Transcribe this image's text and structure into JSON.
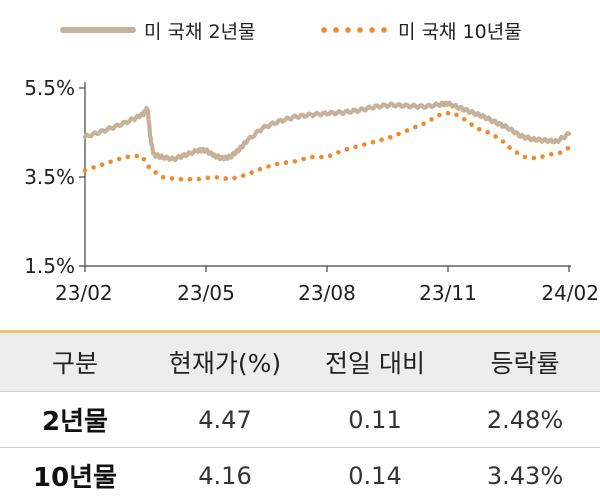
{
  "legend": {
    "series_2y": "미 국채 2년물",
    "series_10y": "미 국채 10년물"
  },
  "colors": {
    "series_2y": "#c7b299",
    "series_10y": "#ef8a2e",
    "axis": "#444444"
  },
  "chart_data": {
    "type": "line",
    "y_ticks": [
      "5.5%",
      "3.5%",
      "1.5%"
    ],
    "x_ticks": [
      "23/02",
      "23/05",
      "23/08",
      "23/11",
      "24/02"
    ],
    "ylim": [
      1.5,
      5.5
    ],
    "xlim": [
      0,
      12
    ],
    "grid": false,
    "legend_position": "top",
    "series": [
      {
        "name": "미 국채 2년물",
        "style": "solid",
        "points": [
          [
            0,
            4.4
          ],
          [
            0.4,
            4.52
          ],
          [
            0.8,
            4.65
          ],
          [
            1.2,
            4.8
          ],
          [
            1.45,
            4.92
          ],
          [
            1.55,
            5.05
          ],
          [
            1.62,
            4.4
          ],
          [
            1.7,
            4.0
          ],
          [
            1.9,
            3.95
          ],
          [
            2.2,
            3.9
          ],
          [
            2.5,
            4.0
          ],
          [
            2.8,
            4.1
          ],
          [
            3.0,
            4.1
          ],
          [
            3.2,
            3.98
          ],
          [
            3.4,
            3.92
          ],
          [
            3.6,
            3.95
          ],
          [
            3.8,
            4.1
          ],
          [
            4.0,
            4.3
          ],
          [
            4.4,
            4.6
          ],
          [
            4.8,
            4.75
          ],
          [
            5.2,
            4.85
          ],
          [
            5.6,
            4.9
          ],
          [
            6.0,
            4.93
          ],
          [
            6.4,
            4.95
          ],
          [
            6.8,
            5.0
          ],
          [
            7.2,
            5.08
          ],
          [
            7.6,
            5.12
          ],
          [
            8.0,
            5.1
          ],
          [
            8.4,
            5.08
          ],
          [
            8.8,
            5.13
          ],
          [
            9.0,
            5.15
          ],
          [
            9.3,
            5.05
          ],
          [
            9.6,
            4.95
          ],
          [
            9.9,
            4.85
          ],
          [
            10.2,
            4.72
          ],
          [
            10.5,
            4.6
          ],
          [
            10.8,
            4.42
          ],
          [
            11.1,
            4.35
          ],
          [
            11.4,
            4.32
          ],
          [
            11.7,
            4.3
          ],
          [
            12.0,
            4.47
          ]
        ]
      },
      {
        "name": "미 국채 10년물",
        "style": "dotted",
        "points": [
          [
            0,
            3.65
          ],
          [
            0.5,
            3.8
          ],
          [
            1.0,
            3.95
          ],
          [
            1.4,
            3.98
          ],
          [
            1.6,
            3.7
          ],
          [
            1.9,
            3.5
          ],
          [
            2.3,
            3.45
          ],
          [
            2.8,
            3.45
          ],
          [
            3.2,
            3.5
          ],
          [
            3.6,
            3.45
          ],
          [
            4.0,
            3.55
          ],
          [
            4.4,
            3.7
          ],
          [
            4.8,
            3.8
          ],
          [
            5.2,
            3.85
          ],
          [
            5.6,
            3.95
          ],
          [
            6.0,
            3.95
          ],
          [
            6.4,
            4.1
          ],
          [
            6.8,
            4.2
          ],
          [
            7.2,
            4.3
          ],
          [
            7.6,
            4.4
          ],
          [
            8.0,
            4.55
          ],
          [
            8.4,
            4.7
          ],
          [
            8.8,
            4.9
          ],
          [
            9.1,
            4.95
          ],
          [
            9.4,
            4.8
          ],
          [
            9.7,
            4.6
          ],
          [
            10.0,
            4.5
          ],
          [
            10.3,
            4.35
          ],
          [
            10.6,
            4.1
          ],
          [
            10.9,
            3.95
          ],
          [
            11.2,
            3.92
          ],
          [
            11.5,
            4.0
          ],
          [
            11.8,
            4.05
          ],
          [
            12.0,
            4.16
          ]
        ]
      }
    ]
  },
  "table": {
    "headers": [
      "구분",
      "현재가(%)",
      "전일 대비",
      "등락률"
    ],
    "rows": [
      [
        "2년물",
        "4.47",
        "0.11",
        "2.48%"
      ],
      [
        "10년물",
        "4.16",
        "0.14",
        "3.43%"
      ]
    ]
  }
}
